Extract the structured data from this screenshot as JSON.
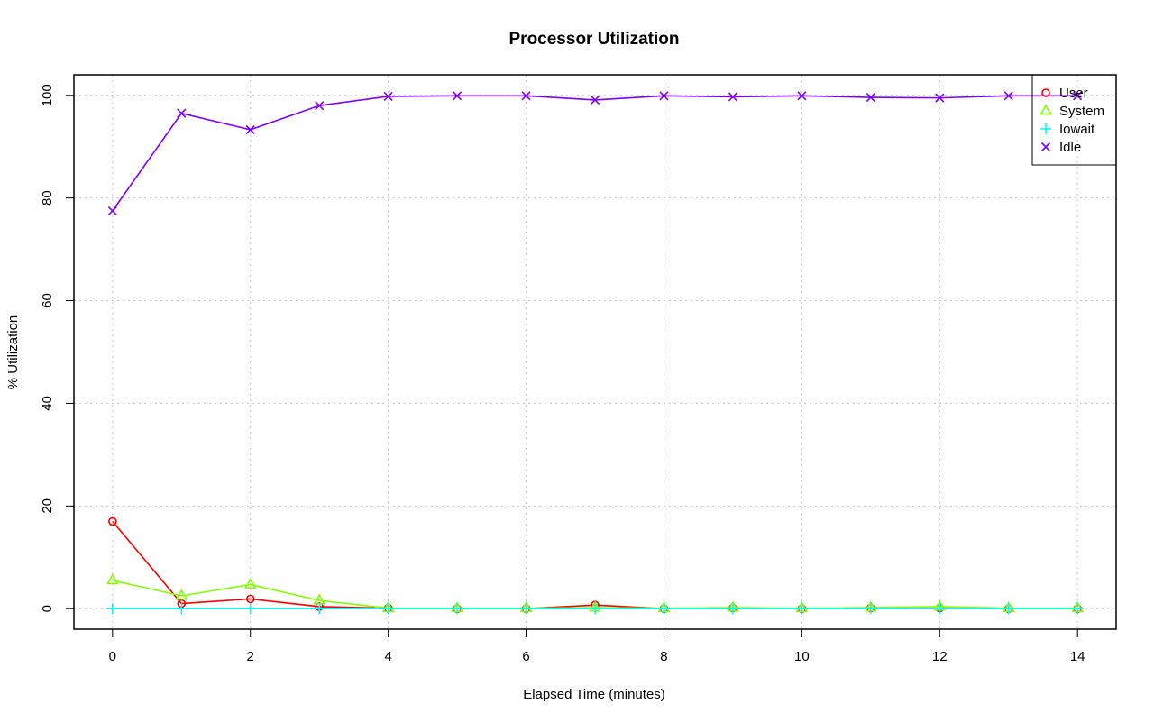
{
  "chart_data": {
    "type": "line",
    "title": "Processor Utilization",
    "xlabel": "Elapsed Time (minutes)",
    "ylabel": "% Utilization",
    "xlim": [
      -0.56,
      14.56
    ],
    "ylim": [
      -4,
      104
    ],
    "xticks": [
      0,
      2,
      4,
      6,
      8,
      10,
      12,
      14
    ],
    "yticks": [
      0,
      20,
      40,
      60,
      80,
      100
    ],
    "grid": true,
    "legend_position": "top-right",
    "x": [
      0,
      1,
      2,
      3,
      4,
      5,
      6,
      7,
      8,
      9,
      10,
      11,
      12,
      13,
      14
    ],
    "series": [
      {
        "name": "User",
        "color": "#ff0000",
        "marker": "circle",
        "values": [
          17.0,
          1.0,
          1.9,
          0.4,
          0.1,
          0.0,
          0.0,
          0.7,
          0.0,
          0.1,
          0.0,
          0.1,
          0.1,
          0.0,
          0.0
        ]
      },
      {
        "name": "System",
        "color": "#80ff00",
        "marker": "triangle",
        "values": [
          5.5,
          2.5,
          4.7,
          1.6,
          0.1,
          0.1,
          0.1,
          0.2,
          0.1,
          0.2,
          0.1,
          0.2,
          0.4,
          0.1,
          0.1
        ]
      },
      {
        "name": "Iowait",
        "color": "#00ffff",
        "marker": "plus",
        "values": [
          0.0,
          0.0,
          0.0,
          0.0,
          0.0,
          0.0,
          0.0,
          0.0,
          0.0,
          0.0,
          0.0,
          0.0,
          0.0,
          0.0,
          0.0
        ]
      },
      {
        "name": "Idle",
        "color": "#8000ff",
        "marker": "x",
        "values": [
          77.5,
          96.5,
          93.3,
          98.0,
          99.8,
          99.9,
          99.9,
          99.1,
          99.9,
          99.7,
          99.9,
          99.6,
          99.5,
          99.9,
          99.9
        ]
      }
    ]
  }
}
